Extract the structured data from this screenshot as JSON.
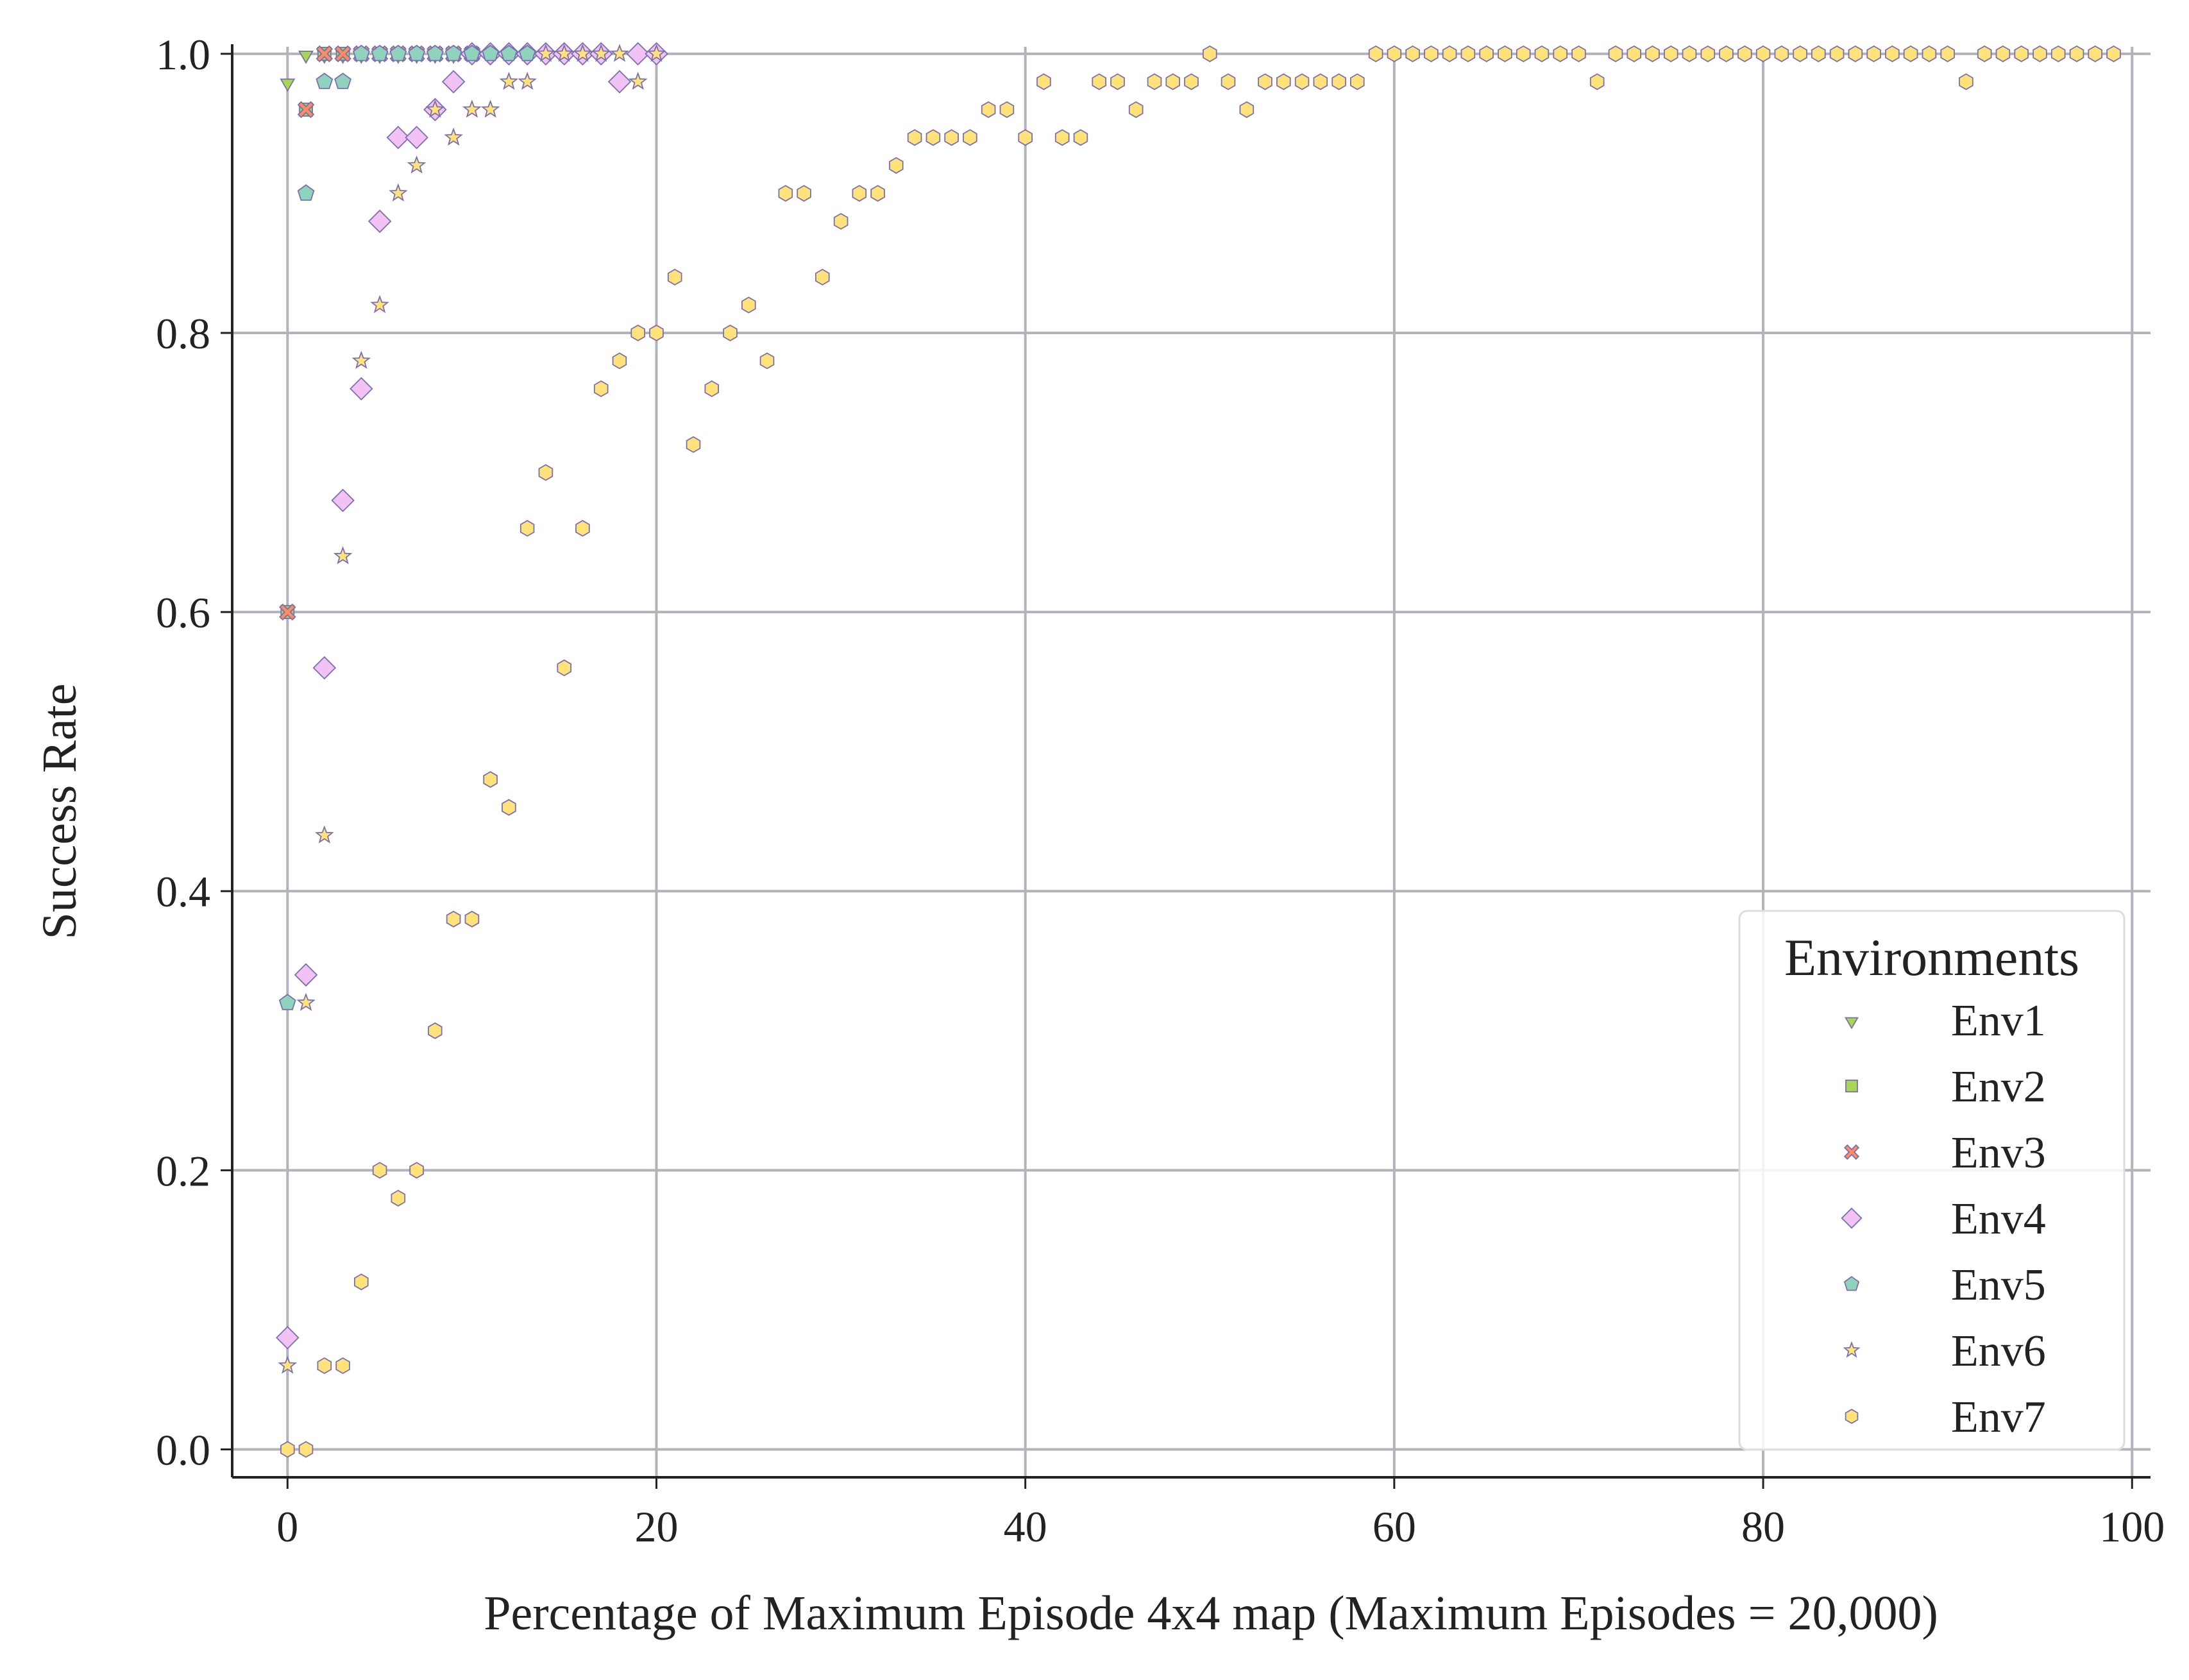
{
  "chart_data": {
    "type": "scatter",
    "title": "",
    "xlabel": "Percentage of Maximum Episode 4x4 map (Maximum Episodes = 20,000)",
    "ylabel": "Success Rate",
    "xlim": [
      -3,
      101
    ],
    "ylim": [
      -0.02,
      1.005
    ],
    "xticks": [
      "0",
      "20",
      "40",
      "60",
      "80",
      "100"
    ],
    "yticks": [
      "0.0",
      "0.2",
      "0.4",
      "0.6",
      "0.8",
      "1.0"
    ],
    "grid": true,
    "legend": {
      "title": "Environments",
      "position": "lower-right"
    },
    "colors": {
      "grid": "#b3b3bb",
      "axis": "#222222",
      "marker_edge": "#7a6fb0"
    },
    "series": [
      {
        "name": "Env1",
        "marker": "triangle-down-icon",
        "color": "#a6d854",
        "points": [
          [
            0,
            0.98
          ],
          [
            1,
            1.0
          ],
          [
            2,
            1.0
          ],
          [
            3,
            1.0
          ],
          [
            4,
            1.0
          ],
          [
            5,
            1.0
          ],
          [
            6,
            1.0
          ],
          [
            7,
            1.0
          ],
          [
            8,
            1.0
          ],
          [
            9,
            1.0
          ],
          [
            10,
            1.0
          ]
        ]
      },
      {
        "name": "Env2",
        "marker": "square-icon",
        "color": "#a6d854",
        "points": [
          [
            0,
            0.6
          ],
          [
            1,
            0.96
          ],
          [
            2,
            1.0
          ],
          [
            3,
            1.0
          ],
          [
            4,
            1.0
          ],
          [
            5,
            1.0
          ],
          [
            6,
            1.0
          ],
          [
            7,
            1.0
          ],
          [
            8,
            1.0
          ],
          [
            9,
            1.0
          ],
          [
            10,
            1.0
          ]
        ]
      },
      {
        "name": "Env3",
        "marker": "x-cross-icon",
        "color": "#fc8d62",
        "points": [
          [
            0,
            0.6
          ],
          [
            1,
            0.96
          ],
          [
            2,
            1.0
          ],
          [
            3,
            1.0
          ],
          [
            4,
            1.0
          ],
          [
            5,
            1.0
          ],
          [
            6,
            1.0
          ],
          [
            7,
            1.0
          ],
          [
            8,
            1.0
          ],
          [
            9,
            1.0
          ],
          [
            10,
            1.0
          ]
        ]
      },
      {
        "name": "Env4",
        "marker": "diamond-icon",
        "color": "#f2c2f5",
        "points": [
          [
            0,
            0.08
          ],
          [
            1,
            0.34
          ],
          [
            2,
            0.56
          ],
          [
            3,
            0.68
          ],
          [
            4,
            0.76
          ],
          [
            5,
            0.88
          ],
          [
            6,
            0.94
          ],
          [
            7,
            0.94
          ],
          [
            8,
            0.96
          ],
          [
            9,
            0.98
          ],
          [
            10,
            1.0
          ],
          [
            11,
            1.0
          ],
          [
            12,
            1.0
          ],
          [
            13,
            1.0
          ],
          [
            14,
            1.0
          ],
          [
            15,
            1.0
          ],
          [
            16,
            1.0
          ],
          [
            17,
            1.0
          ],
          [
            18,
            0.98
          ],
          [
            19,
            1.0
          ],
          [
            20,
            1.0
          ]
        ]
      },
      {
        "name": "Env5",
        "marker": "pentagon-icon",
        "color": "#8fd3bd",
        "points": [
          [
            0,
            0.32
          ],
          [
            1,
            0.9
          ],
          [
            2,
            0.98
          ],
          [
            3,
            0.98
          ],
          [
            4,
            1.0
          ],
          [
            5,
            1.0
          ],
          [
            6,
            1.0
          ],
          [
            7,
            1.0
          ],
          [
            8,
            1.0
          ],
          [
            9,
            1.0
          ],
          [
            10,
            1.0
          ],
          [
            11,
            1.0
          ],
          [
            12,
            1.0
          ],
          [
            13,
            1.0
          ]
        ]
      },
      {
        "name": "Env6",
        "marker": "star-icon",
        "color": "#ffe27a",
        "points": [
          [
            0,
            0.06
          ],
          [
            1,
            0.32
          ],
          [
            2,
            0.44
          ],
          [
            3,
            0.64
          ],
          [
            4,
            0.78
          ],
          [
            5,
            0.82
          ],
          [
            6,
            0.9
          ],
          [
            7,
            0.92
          ],
          [
            8,
            0.96
          ],
          [
            9,
            0.94
          ],
          [
            10,
            0.96
          ],
          [
            11,
            0.96
          ],
          [
            12,
            0.98
          ],
          [
            13,
            0.98
          ],
          [
            14,
            1.0
          ],
          [
            15,
            1.0
          ],
          [
            16,
            1.0
          ],
          [
            17,
            1.0
          ],
          [
            18,
            1.0
          ],
          [
            19,
            0.98
          ],
          [
            20,
            1.0
          ]
        ]
      },
      {
        "name": "Env7",
        "marker": "hexagon-icon",
        "color": "#ffe27a",
        "points": [
          [
            0,
            0.0
          ],
          [
            1,
            0.0
          ],
          [
            2,
            0.06
          ],
          [
            3,
            0.06
          ],
          [
            4,
            0.12
          ],
          [
            5,
            0.2
          ],
          [
            6,
            0.18
          ],
          [
            7,
            0.2
          ],
          [
            8,
            0.3
          ],
          [
            9,
            0.38
          ],
          [
            10,
            0.38
          ],
          [
            11,
            0.48
          ],
          [
            12,
            0.46
          ],
          [
            13,
            0.66
          ],
          [
            14,
            0.7
          ],
          [
            15,
            0.56
          ],
          [
            16,
            0.66
          ],
          [
            17,
            0.76
          ],
          [
            18,
            0.78
          ],
          [
            19,
            0.8
          ],
          [
            20,
            0.8
          ],
          [
            21,
            0.84
          ],
          [
            22,
            0.72
          ],
          [
            23,
            0.76
          ],
          [
            24,
            0.8
          ],
          [
            25,
            0.82
          ],
          [
            26,
            0.78
          ],
          [
            27,
            0.9
          ],
          [
            28,
            0.9
          ],
          [
            29,
            0.84
          ],
          [
            30,
            0.88
          ],
          [
            31,
            0.9
          ],
          [
            32,
            0.9
          ],
          [
            33,
            0.92
          ],
          [
            34,
            0.94
          ],
          [
            35,
            0.94
          ],
          [
            36,
            0.94
          ],
          [
            37,
            0.94
          ],
          [
            38,
            0.96
          ],
          [
            39,
            0.96
          ],
          [
            40,
            0.94
          ],
          [
            41,
            0.98
          ],
          [
            42,
            0.94
          ],
          [
            43,
            0.94
          ],
          [
            44,
            0.98
          ],
          [
            45,
            0.98
          ],
          [
            46,
            0.96
          ],
          [
            47,
            0.98
          ],
          [
            48,
            0.98
          ],
          [
            49,
            0.98
          ],
          [
            50,
            1.0
          ],
          [
            51,
            0.98
          ],
          [
            52,
            0.96
          ],
          [
            53,
            0.98
          ],
          [
            54,
            0.98
          ],
          [
            55,
            0.98
          ],
          [
            56,
            0.98
          ],
          [
            57,
            0.98
          ],
          [
            58,
            0.98
          ],
          [
            59,
            1.0
          ],
          [
            60,
            1.0
          ],
          [
            61,
            1.0
          ],
          [
            62,
            1.0
          ],
          [
            63,
            1.0
          ],
          [
            64,
            1.0
          ],
          [
            65,
            1.0
          ],
          [
            66,
            1.0
          ],
          [
            67,
            1.0
          ],
          [
            68,
            1.0
          ],
          [
            69,
            1.0
          ],
          [
            70,
            1.0
          ],
          [
            71,
            0.98
          ],
          [
            72,
            1.0
          ],
          [
            73,
            1.0
          ],
          [
            74,
            1.0
          ],
          [
            75,
            1.0
          ],
          [
            76,
            1.0
          ],
          [
            77,
            1.0
          ],
          [
            78,
            1.0
          ],
          [
            79,
            1.0
          ],
          [
            80,
            1.0
          ],
          [
            81,
            1.0
          ],
          [
            82,
            1.0
          ],
          [
            83,
            1.0
          ],
          [
            84,
            1.0
          ],
          [
            85,
            1.0
          ],
          [
            86,
            1.0
          ],
          [
            87,
            1.0
          ],
          [
            88,
            1.0
          ],
          [
            89,
            1.0
          ],
          [
            90,
            1.0
          ],
          [
            91,
            0.98
          ],
          [
            92,
            1.0
          ],
          [
            93,
            1.0
          ],
          [
            94,
            1.0
          ],
          [
            95,
            1.0
          ],
          [
            96,
            1.0
          ],
          [
            97,
            1.0
          ],
          [
            98,
            1.0
          ],
          [
            99,
            1.0
          ]
        ]
      }
    ],
    "saturated_band": {
      "note_value": 1.0,
      "x_range": [
        14,
        99
      ],
      "overlapping_series": [
        "Env4",
        "Env6",
        "Env5",
        "Env1",
        "Env2",
        "Env3"
      ]
    }
  }
}
